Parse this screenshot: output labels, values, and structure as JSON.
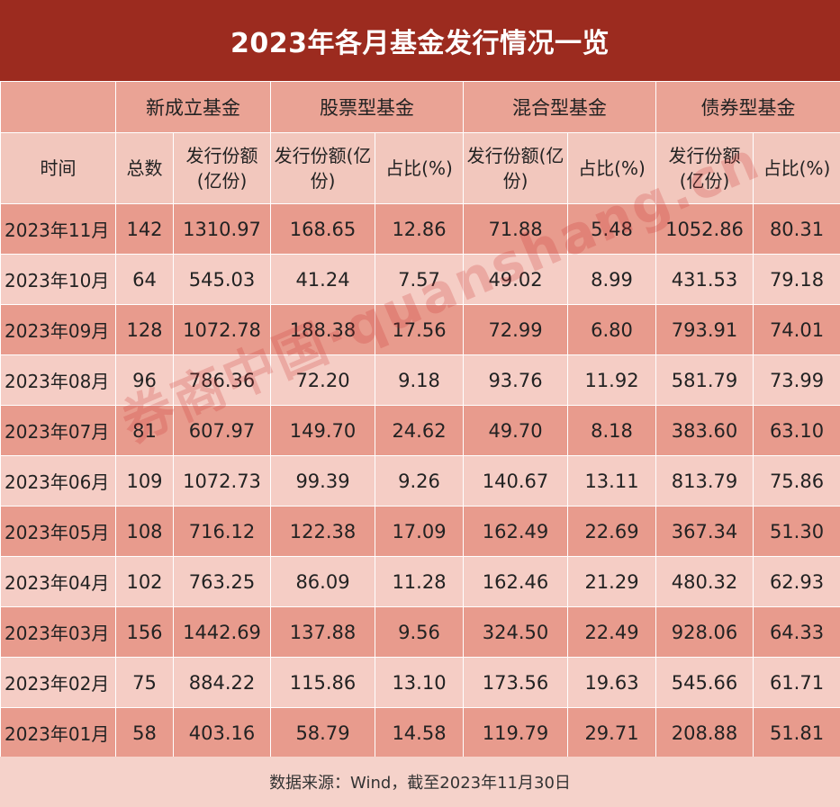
{
  "title": "2023年各月基金发行情况一览",
  "header": {
    "groups": [
      "新成立基金",
      "股票型基金",
      "混合型基金",
      "债券型基金"
    ],
    "col_time": "时间",
    "col_count": "总数",
    "col_amount": "发行份额(亿份)",
    "col_ratio": "占比(%)"
  },
  "rows": [
    [
      "2023年11月",
      "142",
      "1310.97",
      "168.65",
      "12.86",
      "71.88",
      "5.48",
      "1052.86",
      "80.31"
    ],
    [
      "2023年10月",
      "64",
      "545.03",
      "41.24",
      "7.57",
      "49.02",
      "8.99",
      "431.53",
      "79.18"
    ],
    [
      "2023年09月",
      "128",
      "1072.78",
      "188.38",
      "17.56",
      "72.99",
      "6.80",
      "793.91",
      "74.01"
    ],
    [
      "2023年08月",
      "96",
      "786.36",
      "72.20",
      "9.18",
      "93.76",
      "11.92",
      "581.79",
      "73.99"
    ],
    [
      "2023年07月",
      "81",
      "607.97",
      "149.70",
      "24.62",
      "49.70",
      "8.18",
      "383.60",
      "63.10"
    ],
    [
      "2023年06月",
      "109",
      "1072.73",
      "99.39",
      "9.26",
      "140.67",
      "13.11",
      "813.79",
      "75.86"
    ],
    [
      "2023年05月",
      "108",
      "716.12",
      "122.38",
      "17.09",
      "162.49",
      "22.69",
      "367.34",
      "51.30"
    ],
    [
      "2023年04月",
      "102",
      "763.25",
      "86.09",
      "11.28",
      "162.46",
      "21.29",
      "480.32",
      "62.93"
    ],
    [
      "2023年03月",
      "156",
      "1442.69",
      "137.88",
      "9.56",
      "324.50",
      "22.49",
      "928.06",
      "64.33"
    ],
    [
      "2023年02月",
      "75",
      "884.22",
      "115.86",
      "13.10",
      "173.56",
      "19.63",
      "545.66",
      "61.71"
    ],
    [
      "2023年01月",
      "58",
      "403.16",
      "58.79",
      "14.58",
      "119.79",
      "29.71",
      "208.88",
      "51.81"
    ]
  ],
  "footer": "数据来源：Wind，截至2023年11月30日",
  "watermark": "券商中国·quanshang.cn",
  "colors": {
    "title_bg": "#9c2b1f",
    "row_dark": "#e89b8d",
    "row_light": "#f5cdc5",
    "header_dark": "#eaa395",
    "header_light": "#f2c7bd",
    "footer_bg": "#f5d2ca",
    "watermark": "#c82828"
  }
}
